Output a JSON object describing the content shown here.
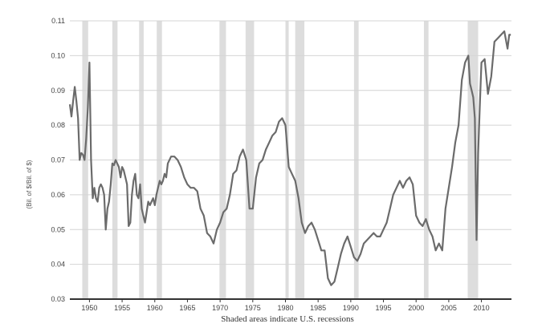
{
  "chart_data": {
    "type": "line",
    "title": "",
    "ylabel": "(Bil. of $/Bil. of $)",
    "xlabel": "",
    "note": "Shaded areas indicate U.S. recessions",
    "xlim": [
      1947,
      2014.6
    ],
    "ylim": [
      0.03,
      0.11
    ],
    "x_ticks": [
      1950,
      1955,
      1960,
      1965,
      1970,
      1975,
      1980,
      1985,
      1990,
      1995,
      2000,
      2005,
      2010
    ],
    "y_ticks": [
      0.03,
      0.04,
      0.05,
      0.06,
      0.07,
      0.08,
      0.09,
      0.1,
      0.11
    ],
    "y_tick_labels": [
      "0.03",
      "0.04",
      "0.05",
      "0.06",
      "0.07",
      "0.08",
      "0.09",
      "0.10",
      "0.11"
    ],
    "grid": "horizontal",
    "colors": {
      "line": "#6b6b6b",
      "recession": "#dddddd",
      "grid": "#d4d4d4",
      "axis": "#333333"
    },
    "recessions": [
      [
        1948.9,
        1949.8
      ],
      [
        1953.5,
        1954.3
      ],
      [
        1957.6,
        1958.3
      ],
      [
        1960.3,
        1961.1
      ],
      [
        1969.9,
        1970.9
      ],
      [
        1973.9,
        1975.2
      ],
      [
        1980.0,
        1980.5
      ],
      [
        1981.5,
        1982.9
      ],
      [
        1990.5,
        1991.2
      ],
      [
        2001.2,
        2001.9
      ],
      [
        2007.9,
        2009.5
      ]
    ],
    "series": [
      {
        "x": [
          1947.0,
          1947.25,
          1947.5,
          1947.75,
          1948.0,
          1948.25,
          1948.5,
          1948.75,
          1949.0,
          1949.25,
          1949.5,
          1949.75,
          1950.0,
          1950.25,
          1950.5,
          1950.75,
          1951.0,
          1951.25,
          1951.5,
          1951.75,
          1952.0,
          1952.25,
          1952.5,
          1952.75,
          1953.0,
          1953.25,
          1953.5,
          1953.75,
          1954.0,
          1954.25,
          1954.5,
          1954.75,
          1955.0,
          1955.25,
          1955.5,
          1955.75,
          1956.0,
          1956.25,
          1956.5,
          1956.75,
          1957.0,
          1957.25,
          1957.5,
          1957.75,
          1958.0,
          1958.25,
          1958.5,
          1958.75,
          1959.0,
          1959.25,
          1959.5,
          1959.75,
          1960.0,
          1960.25,
          1960.5,
          1960.75,
          1961.0,
          1961.25,
          1961.5,
          1961.75,
          1962.0,
          1962.5,
          1963.0,
          1963.5,
          1964.0,
          1964.5,
          1965.0,
          1965.5,
          1966.0,
          1966.5,
          1967.0,
          1967.5,
          1968.0,
          1968.5,
          1969.0,
          1969.5,
          1970.0,
          1970.5,
          1971.0,
          1971.5,
          1972.0,
          1972.5,
          1973.0,
          1973.5,
          1974.0,
          1974.5,
          1975.0,
          1975.5,
          1976.0,
          1976.5,
          1977.0,
          1977.5,
          1978.0,
          1978.5,
          1979.0,
          1979.5,
          1980.0,
          1980.5,
          1981.0,
          1981.5,
          1982.0,
          1982.5,
          1983.0,
          1983.5,
          1984.0,
          1984.5,
          1985.0,
          1985.5,
          1986.0,
          1986.5,
          1987.0,
          1987.5,
          1988.0,
          1988.5,
          1989.0,
          1989.5,
          1990.0,
          1990.5,
          1991.0,
          1991.5,
          1992.0,
          1992.5,
          1993.0,
          1993.5,
          1994.0,
          1994.5,
          1995.0,
          1995.5,
          1996.0,
          1996.5,
          1997.0,
          1997.5,
          1998.0,
          1998.5,
          1999.0,
          1999.5,
          2000.0,
          2000.5,
          2001.0,
          2001.5,
          2002.0,
          2002.5,
          2003.0,
          2003.5,
          2004.0,
          2004.5,
          2005.0,
          2005.5,
          2006.0,
          2006.5,
          2007.0,
          2007.5,
          2008.0,
          2008.25,
          2008.5,
          2008.75,
          2009.0,
          2009.25,
          2009.5,
          2009.75,
          2010.0,
          2010.5,
          2011.0,
          2011.5,
          2012.0,
          2012.5,
          2013.0,
          2013.5,
          2014.0,
          2014.25,
          2014.5
        ],
        "y": [
          0.086,
          0.0825,
          0.087,
          0.091,
          0.087,
          0.082,
          0.07,
          0.072,
          0.0715,
          0.07,
          0.076,
          0.085,
          0.098,
          0.07,
          0.059,
          0.062,
          0.059,
          0.058,
          0.062,
          0.063,
          0.062,
          0.06,
          0.05,
          0.056,
          0.058,
          0.063,
          0.069,
          0.0685,
          0.07,
          0.069,
          0.068,
          0.065,
          0.068,
          0.067,
          0.065,
          0.063,
          0.051,
          0.052,
          0.06,
          0.064,
          0.066,
          0.06,
          0.059,
          0.063,
          0.056,
          0.054,
          0.052,
          0.055,
          0.058,
          0.057,
          0.058,
          0.059,
          0.057,
          0.06,
          0.062,
          0.064,
          0.063,
          0.064,
          0.066,
          0.065,
          0.069,
          0.071,
          0.071,
          0.07,
          0.068,
          0.065,
          0.063,
          0.062,
          0.062,
          0.061,
          0.056,
          0.054,
          0.049,
          0.048,
          0.046,
          0.05,
          0.052,
          0.055,
          0.056,
          0.06,
          0.066,
          0.067,
          0.071,
          0.073,
          0.07,
          0.056,
          0.056,
          0.065,
          0.069,
          0.07,
          0.073,
          0.075,
          0.077,
          0.078,
          0.081,
          0.082,
          0.08,
          0.068,
          0.066,
          0.064,
          0.059,
          0.052,
          0.049,
          0.051,
          0.052,
          0.05,
          0.047,
          0.044,
          0.044,
          0.036,
          0.034,
          0.035,
          0.039,
          0.043,
          0.046,
          0.048,
          0.045,
          0.042,
          0.041,
          0.043,
          0.046,
          0.047,
          0.048,
          0.049,
          0.048,
          0.048,
          0.05,
          0.052,
          0.056,
          0.06,
          0.062,
          0.064,
          0.062,
          0.064,
          0.065,
          0.063,
          0.054,
          0.052,
          0.051,
          0.053,
          0.05,
          0.048,
          0.044,
          0.046,
          0.044,
          0.056,
          0.062,
          0.068,
          0.075,
          0.08,
          0.093,
          0.098,
          0.1,
          0.092,
          0.09,
          0.088,
          0.082,
          0.047,
          0.072,
          0.085,
          0.098,
          0.099,
          0.089,
          0.094,
          0.104,
          0.105,
          0.106,
          0.107,
          0.102,
          0.106,
          0.106
        ]
      }
    ]
  }
}
